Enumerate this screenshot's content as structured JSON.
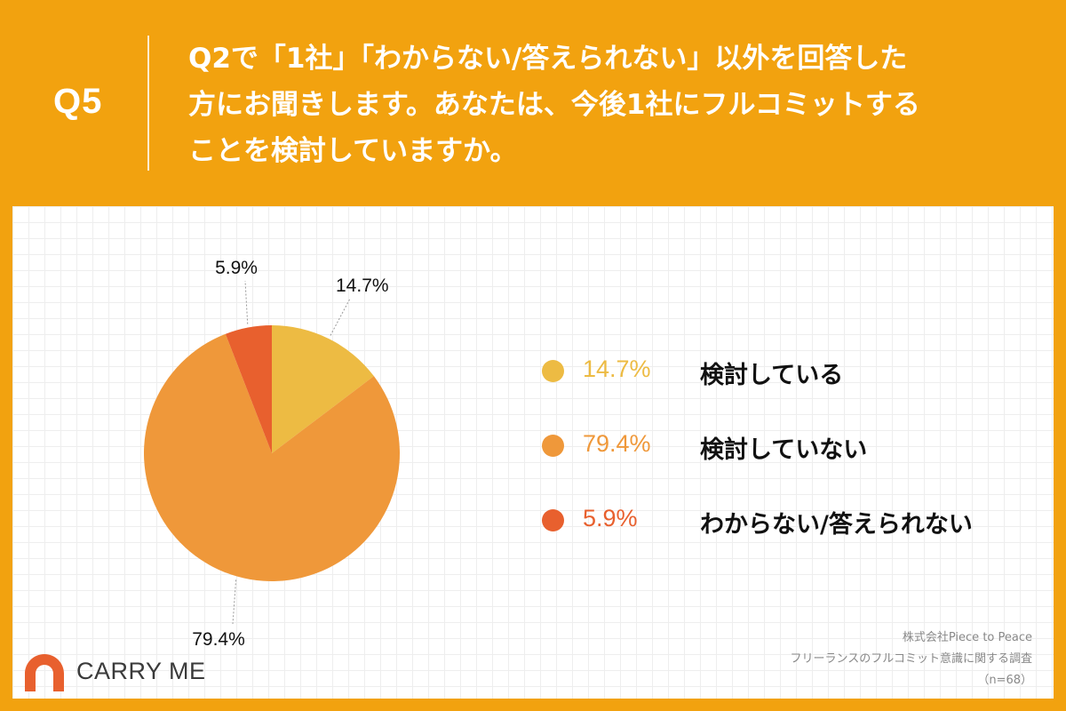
{
  "header": {
    "question_number": "Q5",
    "question_lines": [
      "Q2で「1社」「わからない/答えられない」以外を回答した",
      "方にお聞きします。あなたは、今後1社にフルコミットする",
      "ことを検討していますか。"
    ]
  },
  "chart_data": {
    "type": "pie",
    "slices": [
      {
        "label": "検討している",
        "value": 14.7,
        "value_label": "14.7%",
        "color": "#EDBB43"
      },
      {
        "label": "検討していない",
        "value": 79.4,
        "value_label": "79.4%",
        "color": "#EF983A"
      },
      {
        "label": "わからない/答えられない",
        "value": 5.9,
        "value_label": "5.9%",
        "color": "#E8602E"
      }
    ],
    "start": "top",
    "direction": "clockwise"
  },
  "brand": {
    "name": "CARRY ME",
    "color": "#E8602E"
  },
  "source": {
    "company": "株式会社Piece to Peace",
    "survey": "フリーランスのフルコミット意識に関する調査",
    "sample": "（n=68）"
  },
  "colors": {
    "background": "#F2A20F",
    "panel": "#FFFFFF"
  }
}
